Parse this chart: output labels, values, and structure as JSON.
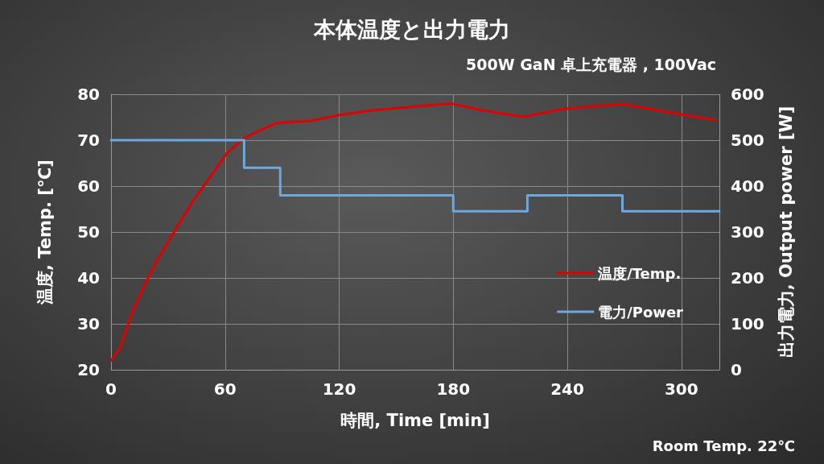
{
  "chart_data": {
    "type": "line",
    "title": "本体温度と出力電力",
    "subtitle": "500W GaN 卓上充電器 , 100Vac",
    "xlabel": "時間, Time [min]",
    "ylabel": "温度, Temp. [℃]",
    "y2label": "出力電力, Output power [W]",
    "annotations": [
      "Room Temp. 22℃"
    ],
    "xlim": [
      0,
      320
    ],
    "xticks": [
      0,
      60,
      120,
      180,
      240,
      300
    ],
    "ylim": [
      20,
      80
    ],
    "yticks": [
      20,
      30,
      40,
      50,
      60,
      70,
      80
    ],
    "y2lim": [
      0,
      600
    ],
    "y2ticks": [
      0,
      100,
      200,
      300,
      400,
      500,
      600
    ],
    "grid": true,
    "legend": "right",
    "marker": "none",
    "line_style": "solid",
    "series": [
      {
        "name": "温度/Temp.",
        "color": "#e00000",
        "x": [
          0,
          0.8,
          5,
          10.6,
          17.8,
          25,
          33.4,
          43,
          53,
          61,
          70,
          78,
          87,
          95,
          105,
          119,
          137.5,
          156,
          178.6,
          195.5,
          216.7,
          238,
          268.7,
          294,
          318
        ],
        "values": [
          22,
          22.5,
          25,
          32,
          38.6,
          44.4,
          50.2,
          56.7,
          62.5,
          67.2,
          70.4,
          72.1,
          73.7,
          74,
          74.2,
          75.4,
          76.5,
          77.2,
          78,
          76.5,
          75.1,
          76.8,
          77.9,
          76,
          74.4
        ]
      },
      {
        "name": "電力/Power",
        "type": "step",
        "axis": "y2",
        "color": "#6fa8dc",
        "x": [
          0,
          70,
          89,
          180,
          219,
          269,
          320
        ],
        "values": [
          500,
          440,
          380,
          345,
          380,
          345,
          345
        ]
      }
    ]
  }
}
